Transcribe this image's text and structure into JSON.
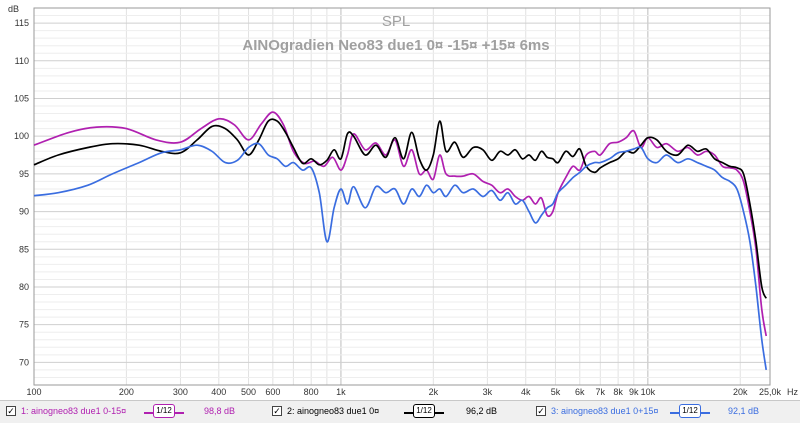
{
  "chart_data": {
    "type": "line",
    "title": "SPL",
    "subtitle": "AINOgradien Neo83 due1 0¤ -15¤ +15¤ 6ms",
    "ylabel": "dB",
    "xlabel": "Hz",
    "x_scale": "log",
    "xlim": [
      100,
      25000
    ],
    "ylim": [
      67,
      117
    ],
    "grid": true,
    "x_ticks": [
      {
        "value": 100,
        "label": "100"
      },
      {
        "value": 200,
        "label": "200"
      },
      {
        "value": 300,
        "label": "300"
      },
      {
        "value": 400,
        "label": "400"
      },
      {
        "value": 500,
        "label": "500"
      },
      {
        "value": 600,
        "label": "600"
      },
      {
        "value": 800,
        "label": "800"
      },
      {
        "value": 1000,
        "label": "1k"
      },
      {
        "value": 2000,
        "label": "2k"
      },
      {
        "value": 3000,
        "label": "3k"
      },
      {
        "value": 4000,
        "label": "4k"
      },
      {
        "value": 5000,
        "label": "5k"
      },
      {
        "value": 6000,
        "label": "6k"
      },
      {
        "value": 7000,
        "label": "7k"
      },
      {
        "value": 8000,
        "label": "8k"
      },
      {
        "value": 9000,
        "label": "9k"
      },
      {
        "value": 10000,
        "label": "10k"
      },
      {
        "value": 20000,
        "label": "20k"
      },
      {
        "value": 25000,
        "label": "25,0k"
      }
    ],
    "y_ticks": [
      70,
      75,
      80,
      85,
      90,
      95,
      100,
      105,
      110,
      115
    ],
    "series": [
      {
        "name": "1: ainogneo83 due1 0-15¤",
        "color": "#b020b0",
        "x": [
          100,
          130,
          160,
          200,
          250,
          300,
          350,
          400,
          450,
          500,
          550,
          600,
          650,
          700,
          760,
          820,
          880,
          940,
          1000,
          1050,
          1100,
          1200,
          1300,
          1400,
          1500,
          1600,
          1700,
          1800,
          1900,
          2000,
          2100,
          2200,
          2350,
          2500,
          2700,
          2900,
          3100,
          3300,
          3500,
          3700,
          3900,
          4100,
          4300,
          4500,
          4700,
          4900,
          5100,
          5400,
          5700,
          6000,
          6300,
          6700,
          7000,
          7500,
          8000,
          8500,
          9000,
          9500,
          10000,
          10700,
          11500,
          12500,
          13500,
          14500,
          15500,
          16500,
          17500,
          18500,
          19500,
          20500,
          21500,
          22500,
          23500,
          24300
        ],
        "y": [
          98.8,
          100.5,
          101.2,
          101.0,
          99.5,
          99.2,
          101.0,
          102.3,
          101.5,
          99.5,
          101.6,
          103.2,
          101.5,
          98.0,
          96.4,
          96.7,
          96.0,
          97.2,
          95.5,
          97.5,
          100.3,
          98.2,
          99.1,
          97.5,
          99.5,
          96.0,
          98.2,
          95.0,
          95.5,
          94.3,
          97.5,
          95.0,
          94.7,
          94.7,
          95.0,
          94.0,
          93.5,
          92.5,
          93.0,
          92.0,
          91.5,
          92.0,
          91.0,
          91.8,
          89.5,
          90.0,
          92.5,
          94.5,
          96.0,
          95.5,
          97.5,
          98.0,
          97.5,
          99.0,
          99.2,
          99.8,
          100.7,
          98.5,
          99.8,
          98.5,
          99.0,
          98.0,
          98.5,
          97.5,
          98.0,
          97.5,
          96.0,
          95.8,
          95.5,
          94.0,
          90.0,
          85.0,
          77.0,
          73.5
        ]
      },
      {
        "name": "2: ainogneo83 due1 0¤",
        "color": "#000000",
        "x": [
          100,
          120,
          150,
          180,
          220,
          260,
          300,
          340,
          380,
          420,
          460,
          500,
          540,
          580,
          620,
          660,
          700,
          750,
          800,
          850,
          900,
          950,
          1000,
          1050,
          1100,
          1200,
          1300,
          1400,
          1500,
          1600,
          1700,
          1800,
          1900,
          2000,
          2100,
          2200,
          2350,
          2500,
          2700,
          2900,
          3100,
          3300,
          3500,
          3700,
          3900,
          4100,
          4300,
          4500,
          4700,
          4900,
          5100,
          5400,
          5700,
          6000,
          6300,
          6700,
          7000,
          7500,
          8000,
          8500,
          9000,
          9500,
          10000,
          10700,
          11500,
          12500,
          13500,
          14500,
          15500,
          16500,
          17500,
          18500,
          19500,
          20500,
          21500,
          22500,
          23500,
          24300
        ],
        "y": [
          96.2,
          97.5,
          98.5,
          99.0,
          98.8,
          98.0,
          97.8,
          99.5,
          101.3,
          101.0,
          99.5,
          97.5,
          99.5,
          102.0,
          102.0,
          100.5,
          98.5,
          96.4,
          97.0,
          96.2,
          96.8,
          98.2,
          97.0,
          100.3,
          100.0,
          97.5,
          98.8,
          97.2,
          99.8,
          97.0,
          100.5,
          97.0,
          95.5,
          97.5,
          102.0,
          98.0,
          99.2,
          97.2,
          98.5,
          98.2,
          96.8,
          98.0,
          97.5,
          98.2,
          97.0,
          97.5,
          96.8,
          98.0,
          97.2,
          97.0,
          96.5,
          98.0,
          97.3,
          98.3,
          96.0,
          95.2,
          95.8,
          96.5,
          97.0,
          98.0,
          97.8,
          98.8,
          99.8,
          99.5,
          98.0,
          97.5,
          98.8,
          98.0,
          98.3,
          97.0,
          96.5,
          96.0,
          95.8,
          95.0,
          91.0,
          86.0,
          80.0,
          78.5
        ]
      },
      {
        "name": "3: ainogneo83 due1 0+15¤",
        "color": "#3a6de0",
        "x": [
          100,
          120,
          150,
          180,
          220,
          260,
          300,
          340,
          380,
          420,
          460,
          500,
          540,
          580,
          620,
          660,
          700,
          750,
          800,
          850,
          900,
          950,
          1000,
          1050,
          1100,
          1200,
          1300,
          1400,
          1500,
          1600,
          1700,
          1800,
          1900,
          2000,
          2100,
          2200,
          2350,
          2500,
          2700,
          2900,
          3100,
          3300,
          3500,
          3700,
          3900,
          4100,
          4300,
          4500,
          4700,
          4900,
          5100,
          5400,
          5700,
          6000,
          6300,
          6700,
          7000,
          7500,
          8000,
          8500,
          9000,
          9500,
          10000,
          10700,
          11500,
          12500,
          13500,
          14500,
          15500,
          16500,
          17500,
          18500,
          19500,
          20500,
          21500,
          22500,
          23500,
          24300
        ],
        "y": [
          92.1,
          92.5,
          93.5,
          95.0,
          96.5,
          97.8,
          98.2,
          98.8,
          98.0,
          96.5,
          96.8,
          98.5,
          99.0,
          97.5,
          97.0,
          96.0,
          96.5,
          95.5,
          95.8,
          92.5,
          86.0,
          90.5,
          93.0,
          91.0,
          93.3,
          90.5,
          93.3,
          92.5,
          93.0,
          91.0,
          93.0,
          92.0,
          93.5,
          92.5,
          93.0,
          92.0,
          93.5,
          92.5,
          93.0,
          92.0,
          92.8,
          91.5,
          92.5,
          91.0,
          91.5,
          90.0,
          88.5,
          89.5,
          90.5,
          91.0,
          92.5,
          93.5,
          94.5,
          95.2,
          96.0,
          96.5,
          96.5,
          97.0,
          97.8,
          98.0,
          98.3,
          98.5,
          97.0,
          96.5,
          97.5,
          96.5,
          97.0,
          96.5,
          96.0,
          95.5,
          94.5,
          94.0,
          93.0,
          90.0,
          86.0,
          80.0,
          73.0,
          69.0
        ]
      }
    ]
  },
  "legend": [
    {
      "label": "1: ainogneo83 due1 0-15¤",
      "smoothing": "1/12",
      "value": "98,8 dB",
      "color": "#b020b0",
      "checked": "✓"
    },
    {
      "label": "2: ainogneo83 due1 0¤",
      "smoothing": "1/12",
      "value": "96,2 dB",
      "color": "#000000",
      "checked": "✓"
    },
    {
      "label": "3: ainogneo83 due1 0+15¤",
      "smoothing": "1/12",
      "value": "92,1 dB",
      "color": "#3a6de0",
      "checked": "✓"
    }
  ]
}
